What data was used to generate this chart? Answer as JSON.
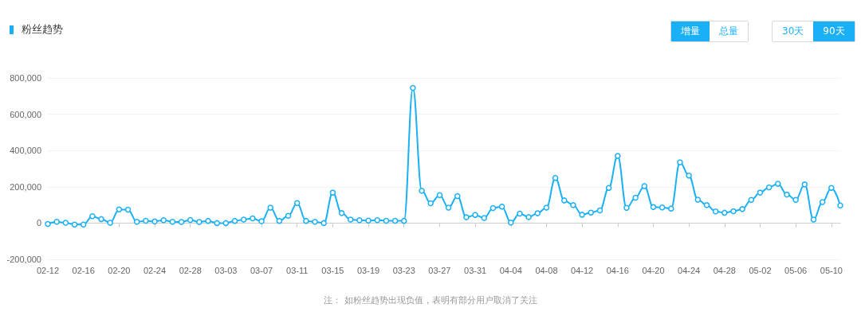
{
  "chart_data": {
    "type": "line",
    "title": "粉丝趋势",
    "categories": [
      "02-12",
      null,
      null,
      null,
      "02-16",
      null,
      null,
      null,
      "02-20",
      null,
      null,
      null,
      "02-24",
      null,
      null,
      null,
      "02-28",
      null,
      null,
      null,
      "03-03",
      null,
      null,
      null,
      "03-07",
      null,
      null,
      null,
      "03-11",
      null,
      null,
      null,
      "03-15",
      null,
      null,
      null,
      "03-19",
      null,
      null,
      null,
      "03-23",
      null,
      null,
      null,
      "03-27",
      null,
      null,
      null,
      "03-31",
      null,
      null,
      null,
      "04-04",
      null,
      null,
      null,
      "04-08",
      null,
      null,
      null,
      "04-12",
      null,
      null,
      null,
      "04-16",
      null,
      null,
      null,
      "04-20",
      null,
      null,
      null,
      "04-24",
      null,
      null,
      null,
      "04-28",
      null,
      null,
      null,
      "05-02",
      null,
      null,
      null,
      "05-06",
      null,
      null,
      null,
      "05-10",
      null
    ],
    "series": [
      {
        "color": "#1ab0f5",
        "values": [
          -5000,
          7000,
          2000,
          -8000,
          -8000,
          38000,
          22000,
          2000,
          75000,
          74000,
          7000,
          13000,
          9000,
          16000,
          7000,
          6000,
          17000,
          6000,
          12000,
          0,
          0,
          12000,
          19000,
          26000,
          10000,
          85000,
          12000,
          40000,
          110000,
          12000,
          7000,
          0,
          168000,
          55000,
          19000,
          16000,
          14000,
          16000,
          13000,
          13000,
          12000,
          745000,
          178000,
          109000,
          154000,
          85000,
          149000,
          32000,
          45000,
          28000,
          83000,
          91000,
          3000,
          52000,
          33000,
          54000,
          85000,
          249000,
          125000,
          99000,
          46000,
          58000,
          70000,
          194000,
          370000,
          84000,
          140000,
          204000,
          88000,
          86000,
          80000,
          335000,
          262000,
          129000,
          99000,
          64000,
          57000,
          65000,
          77000,
          128000,
          168000,
          197000,
          217000,
          157000,
          128000,
          213000,
          19000,
          116000,
          194000,
          97000
        ]
      }
    ],
    "ylim": [
      -200000,
      800000
    ],
    "yticks": [
      {
        "value": -200000,
        "label": "-200,000"
      },
      {
        "value": 0,
        "label": "0"
      },
      {
        "value": 200000,
        "label": "200,000"
      },
      {
        "value": 400000,
        "label": "400,000"
      },
      {
        "value": 600000,
        "label": "600,000"
      },
      {
        "value": 800000,
        "label": "800,000"
      }
    ],
    "grid": "y",
    "marker": "circle",
    "line_style": "solid",
    "annotations": [
      "增量",
      "总量",
      "30天",
      "90天",
      "注：  如粉丝趋势出现负值，表明有部分用户取消了关注"
    ]
  }
}
